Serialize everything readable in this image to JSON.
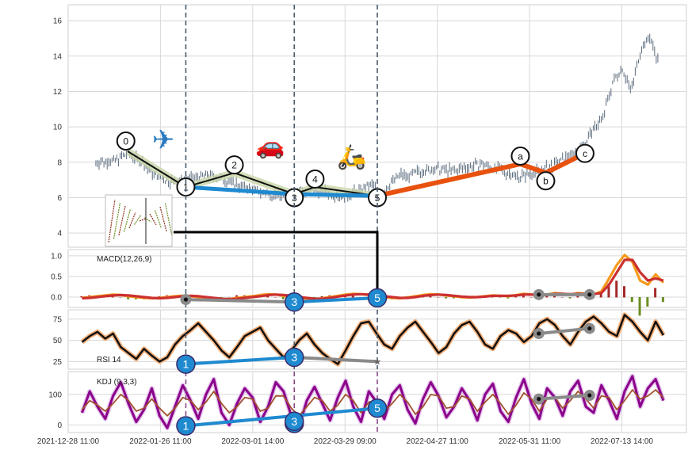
{
  "chart_data": [
    {
      "type": "candlestick",
      "panel": "price",
      "y_ticks": [
        4,
        6,
        8,
        10,
        12,
        14,
        16
      ],
      "ylim": [
        3.2,
        16.9
      ],
      "grid": true,
      "x_ticks": [
        "2021-12-28 11:00",
        "2022-01-26 11:00",
        "2022-03-01 14:00",
        "2022-03-29 09:00",
        "2022-04-27 11:00",
        "2022-05-31 11:00",
        "2022-07-13 14:00"
      ],
      "x_tick_positions": [
        0,
        20,
        40,
        60,
        80,
        100,
        120
      ],
      "xlim": [
        0,
        134
      ],
      "price_path": [
        [
          6,
          8.0
        ],
        [
          10,
          8.1
        ],
        [
          13,
          8.5
        ],
        [
          16,
          8.0
        ],
        [
          18,
          7.4
        ],
        [
          22,
          6.9
        ],
        [
          26,
          7.0
        ],
        [
          30,
          7.3
        ],
        [
          34,
          7.0
        ],
        [
          38,
          6.6
        ],
        [
          42,
          6.3
        ],
        [
          46,
          6.1
        ],
        [
          50,
          6.3
        ],
        [
          54,
          6.4
        ],
        [
          58,
          6.2
        ],
        [
          60,
          6.0
        ],
        [
          62,
          6.3
        ],
        [
          66,
          6.7
        ],
        [
          68,
          6.1
        ],
        [
          70,
          6.9
        ],
        [
          72,
          7.3
        ],
        [
          74,
          7.2
        ],
        [
          76,
          7.5
        ],
        [
          80,
          7.6
        ],
        [
          84,
          7.5
        ],
        [
          86,
          7.7
        ],
        [
          90,
          7.9
        ],
        [
          94,
          7.5
        ],
        [
          98,
          7.2
        ],
        [
          102,
          7.5
        ],
        [
          106,
          7.9
        ],
        [
          108,
          8.3
        ],
        [
          110,
          8.6
        ],
        [
          112,
          9.1
        ],
        [
          114,
          9.9
        ],
        [
          116,
          10.6
        ],
        [
          118,
          12.5
        ],
        [
          120,
          13.4
        ],
        [
          122,
          12.0
        ],
        [
          124,
          14.3
        ],
        [
          126,
          15.1
        ],
        [
          128,
          13.6
        ]
      ],
      "markers": [
        {
          "label": "0",
          "x": 12.5,
          "y": 9.2
        },
        {
          "label": "1",
          "x": 25.5,
          "y": 6.6
        },
        {
          "label": "2",
          "x": 36,
          "y": 7.85
        },
        {
          "label": "3",
          "x": 49,
          "y": 6.0
        },
        {
          "label": "4",
          "x": 53.5,
          "y": 7.05
        },
        {
          "label": "5",
          "x": 67,
          "y": 6.0
        },
        {
          "label": "a",
          "x": 98,
          "y": 8.35
        },
        {
          "label": "b",
          "x": 103.5,
          "y": 6.95
        },
        {
          "label": "c",
          "x": 112,
          "y": 8.5
        }
      ],
      "wave_lines": [
        {
          "name": "black",
          "color": "#111111",
          "points": [
            [
              13,
              8.6
            ],
            [
              25.5,
              6.6
            ],
            [
              36,
              7.4
            ],
            [
              49,
              6.2
            ],
            [
              53.5,
              6.6
            ],
            [
              67,
              6.1
            ]
          ]
        },
        {
          "name": "blue",
          "color": "#1f8ad0",
          "points": [
            [
              25.5,
              6.6
            ],
            [
              49,
              6.2
            ],
            [
              67,
              6.1
            ]
          ]
        },
        {
          "name": "orange",
          "color": "#e8520e",
          "points": [
            [
              67,
              6.1
            ],
            [
              98,
              7.9
            ],
            [
              103.5,
              7.4
            ],
            [
              112,
              8.5
            ]
          ]
        }
      ],
      "v_lines": [
        25.5,
        49,
        67
      ],
      "icons": [
        {
          "name": "airplane-icon",
          "glyph": "✈"
        },
        {
          "name": "car-icon",
          "glyph": "🚗"
        },
        {
          "name": "scooter-icon",
          "glyph": "🛵"
        }
      ]
    },
    {
      "type": "line",
      "panel": "macd",
      "label": "MACD(12,26,9)",
      "y_ticks": [
        0.0,
        0.5,
        1.0
      ],
      "ylim": [
        -0.25,
        1.15
      ],
      "series": [
        {
          "color": "#f59a1c",
          "values": [
            -0.02,
            0.0,
            0.02,
            0.04,
            0.06,
            0.05,
            0.02,
            0.0,
            -0.02,
            -0.03,
            -0.02,
            0.0,
            0.02,
            0.03,
            0.02,
            0.0,
            -0.02,
            -0.04,
            -0.06,
            -0.05,
            -0.02,
            0.0,
            0.02,
            0.05,
            0.07,
            0.06,
            0.03,
            0.0,
            -0.02,
            -0.04,
            -0.05,
            -0.03,
            0.0,
            0.03,
            0.06,
            0.08,
            0.07,
            0.05,
            0.02,
            0.0,
            -0.02,
            -0.03,
            -0.01,
            0.02,
            0.05,
            0.07,
            0.06,
            0.04,
            0.02,
            0.0,
            -0.01,
            0.0,
            0.02,
            0.04,
            0.03,
            0.02,
            0.05,
            0.08,
            0.06,
            0.04,
            0.06,
            0.1,
            0.08,
            0.06,
            0.1,
            0.08,
            0.06,
            0.14,
            0.45,
            0.78,
            1.02,
            0.85,
            0.4,
            0.3,
            0.55,
            0.35
          ]
        },
        {
          "color": "#cc3030",
          "values": [
            -0.03,
            -0.02,
            0.0,
            0.02,
            0.04,
            0.05,
            0.04,
            0.02,
            0.0,
            -0.02,
            -0.03,
            -0.02,
            0.0,
            0.02,
            0.03,
            0.02,
            0.0,
            -0.02,
            -0.04,
            -0.05,
            -0.04,
            -0.02,
            0.0,
            0.02,
            0.05,
            0.06,
            0.05,
            0.03,
            0.0,
            -0.02,
            -0.04,
            -0.04,
            -0.02,
            0.01,
            0.04,
            0.06,
            0.07,
            0.06,
            0.04,
            0.02,
            0.0,
            -0.02,
            -0.02,
            0.0,
            0.03,
            0.05,
            0.06,
            0.05,
            0.03,
            0.01,
            0.0,
            0.0,
            0.01,
            0.03,
            0.03,
            0.03,
            0.04,
            0.06,
            0.06,
            0.05,
            0.05,
            0.08,
            0.08,
            0.07,
            0.08,
            0.08,
            0.07,
            0.1,
            0.3,
            0.6,
            0.9,
            0.9,
            0.6,
            0.4,
            0.45,
            0.4
          ]
        }
      ],
      "markers": [
        {
          "label": "",
          "style": "grey",
          "x": 25.5,
          "y": -0.06
        },
        {
          "label": "3",
          "style": "blue",
          "x": 49,
          "y": -0.12
        },
        {
          "label": "5",
          "style": "blue",
          "x": 67,
          "y": -0.02
        },
        {
          "label": "",
          "style": "grey",
          "x": 102,
          "y": 0.06
        },
        {
          "label": "",
          "style": "grey",
          "x": 113,
          "y": 0.06
        }
      ]
    },
    {
      "type": "line",
      "panel": "rsi",
      "label": "RSI 14",
      "y_ticks": [
        25,
        50,
        75
      ],
      "ylim": [
        16,
        86
      ],
      "series": [
        {
          "color": "#111111",
          "values": [
            48,
            55,
            60,
            52,
            58,
            42,
            35,
            28,
            40,
            32,
            25,
            30,
            45,
            55,
            62,
            70,
            60,
            50,
            38,
            30,
            42,
            55,
            60,
            65,
            50,
            40,
            30,
            38,
            50,
            58,
            45,
            35,
            28,
            22,
            38,
            55,
            70,
            72,
            58,
            45,
            40,
            55,
            65,
            72,
            60,
            48,
            35,
            42,
            58,
            68,
            72,
            60,
            45,
            40,
            55,
            62,
            58,
            48,
            55,
            70,
            75,
            68,
            55,
            45,
            60,
            72,
            78,
            70,
            60,
            55,
            80,
            72,
            60,
            50,
            72,
            56
          ]
        }
      ],
      "markers": [
        {
          "label": "1",
          "style": "blue",
          "x": 25.5,
          "y": 22
        },
        {
          "label": "3",
          "style": "blue",
          "x": 49,
          "y": 30
        },
        {
          "label": "",
          "style": "star",
          "x": 67,
          "y": 25
        },
        {
          "label": "",
          "style": "grey",
          "x": 102,
          "y": 58
        },
        {
          "label": "",
          "style": "grey",
          "x": 113,
          "y": 64
        }
      ]
    },
    {
      "type": "line",
      "panel": "kdj",
      "label": "KDJ (9,3,3)",
      "y_ticks": [
        0,
        100
      ],
      "ylim": [
        -25,
        175
      ],
      "series": [
        {
          "color": "#8b008b",
          "values": [
            40,
            110,
            60,
            20,
            95,
            140,
            70,
            10,
            50,
            120,
            30,
            -10,
            60,
            130,
            80,
            20,
            100,
            150,
            40,
            0,
            70,
            120,
            90,
            10,
            60,
            140,
            110,
            30,
            -5,
            80,
            125,
            70,
            15,
            90,
            145,
            60,
            10,
            110,
            75,
            20,
            100,
            130,
            50,
            5,
            85,
            140,
            95,
            25,
            60,
            120,
            80,
            15,
            100,
            135,
            45,
            10,
            90,
            150,
            70,
            20,
            120,
            90,
            30,
            110,
            145,
            60,
            40,
            130,
            80,
            20,
            110,
            160,
            60,
            120,
            150,
            80
          ]
        },
        {
          "color": "#a0522d",
          "values": [
            50,
            80,
            65,
            45,
            70,
            100,
            80,
            45,
            55,
            85,
            55,
            30,
            55,
            90,
            80,
            50,
            75,
            110,
            70,
            40,
            60,
            90,
            85,
            45,
            55,
            95,
            95,
            55,
            30,
            60,
            90,
            80,
            45,
            65,
            100,
            80,
            40,
            75,
            80,
            45,
            70,
            100,
            75,
            35,
            60,
            100,
            95,
            55,
            60,
            95,
            85,
            45,
            75,
            100,
            70,
            35,
            65,
            105,
            85,
            45,
            85,
            90,
            55,
            80,
            110,
            85,
            55,
            95,
            90,
            50,
            80,
            115,
            85,
            95,
            115,
            90
          ]
        }
      ],
      "markers": [
        {
          "label": "1",
          "style": "blue",
          "x": 25.5,
          "y": -3
        },
        {
          "label": "3",
          "style": "blue",
          "x": 49,
          "y": 5
        },
        {
          "label": "3",
          "style": "blue",
          "x": 49,
          "y": 12
        },
        {
          "label": "5",
          "style": "blue",
          "x": 67,
          "y": 55
        },
        {
          "label": "",
          "style": "grey",
          "x": 102,
          "y": 85
        },
        {
          "label": "",
          "style": "grey",
          "x": 113,
          "y": 97
        }
      ]
    }
  ],
  "colors": {
    "price_line": "#5a6b7d",
    "grid": "#d8d8d8",
    "vline": "#4a5a6a",
    "blue": "#1f8ad0",
    "grey": "#8a8a8a",
    "rsi_glow": "#f5b07a",
    "kdj_glow": "#d29be0",
    "hist_up": "#6b8e23",
    "hist_down": "#a52a2a",
    "band": "#c8d6a8"
  }
}
